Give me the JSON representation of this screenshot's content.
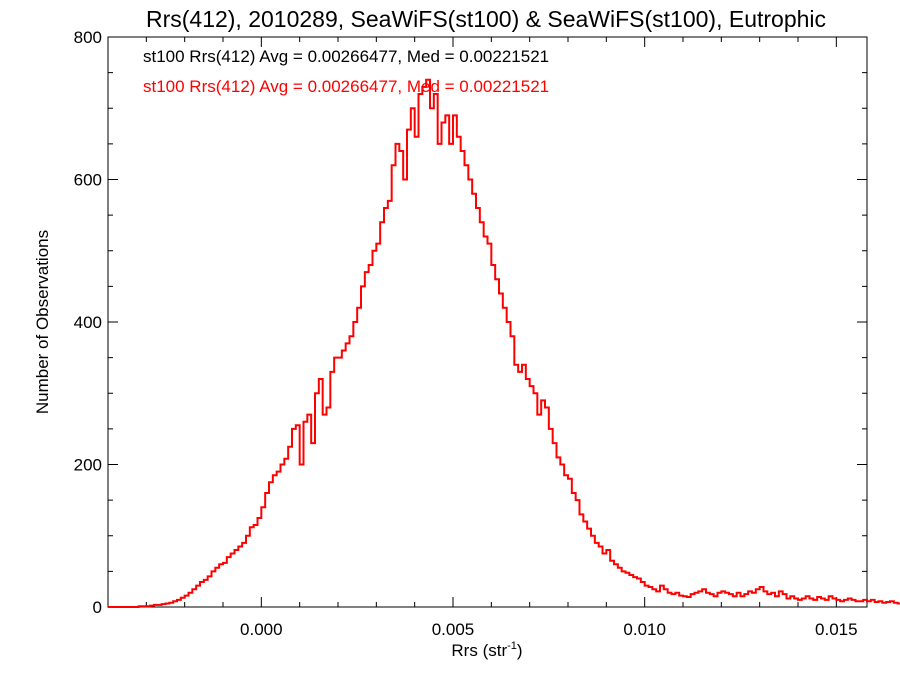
{
  "chart_data": {
    "type": "histogram",
    "title": "Rrs(412), 2010289, SeaWiFS(st100) & SeaWiFS(st100), Eutrophic",
    "xlabel": "Rrs (str",
    "xlabel_sup": "-1",
    "xlabel_close": ")",
    "ylabel": "Number of Observations",
    "xlim": [
      -0.004,
      0.0158
    ],
    "ylim": [
      0,
      800
    ],
    "xticks": [
      {
        "value": 0.0,
        "label": "0.000"
      },
      {
        "value": 0.005,
        "label": "0.005"
      },
      {
        "value": 0.01,
        "label": "0.010"
      },
      {
        "value": 0.015,
        "label": "0.015"
      }
    ],
    "yticks": [
      {
        "value": 0,
        "label": "0"
      },
      {
        "value": 200,
        "label": "200"
      },
      {
        "value": 400,
        "label": "400"
      },
      {
        "value": 600,
        "label": "600"
      },
      {
        "value": 800,
        "label": "800"
      }
    ],
    "annotations": [
      {
        "text": "st100 Rrs(412) Avg = 0.00266477, Med = 0.00221521",
        "color": "#000000"
      },
      {
        "text": "st100 Rrs(412) Avg = 0.00266477, Med = 0.00221521",
        "color": "#ff0000"
      }
    ],
    "grid": false,
    "series": [
      {
        "color": "#ff0000",
        "bin_start": -0.004,
        "bin_width": 0.0001,
        "values": [
          0,
          0,
          0,
          0,
          0,
          0,
          0,
          0,
          1,
          1,
          1,
          2,
          3,
          3,
          4,
          5,
          6,
          8,
          10,
          13,
          16,
          20,
          25,
          30,
          35,
          38,
          43,
          50,
          55,
          60,
          62,
          70,
          75,
          80,
          85,
          90,
          100,
          112,
          115,
          125,
          140,
          160,
          175,
          185,
          190,
          200,
          208,
          225,
          250,
          255,
          200,
          260,
          270,
          230,
          300,
          320,
          270,
          280,
          330,
          350,
          350,
          360,
          370,
          380,
          400,
          420,
          450,
          470,
          480,
          500,
          510,
          540,
          560,
          570,
          620,
          650,
          640,
          600,
          670,
          700,
          660,
          720,
          730,
          740,
          700,
          720,
          650,
          680,
          690,
          650,
          690,
          660,
          640,
          620,
          600,
          580,
          560,
          540,
          520,
          510,
          480,
          460,
          440,
          420,
          400,
          380,
          340,
          330,
          340,
          320,
          310,
          300,
          270,
          290,
          280,
          250,
          230,
          210,
          200,
          185,
          180,
          160,
          150,
          130,
          120,
          110,
          100,
          90,
          85,
          75,
          80,
          65,
          60,
          55,
          50,
          48,
          45,
          42,
          40,
          35,
          30,
          28,
          25,
          22,
          30,
          25,
          20,
          18,
          20,
          16,
          15,
          14,
          18,
          20,
          22,
          25,
          20,
          18,
          15,
          20,
          22,
          20,
          18,
          15,
          20,
          15,
          18,
          22,
          20,
          25,
          28,
          22,
          18,
          20,
          15,
          22,
          18,
          12,
          15,
          12,
          10,
          12,
          15,
          12,
          10,
          14,
          12,
          10,
          15,
          12,
          10,
          8,
          10,
          12,
          10,
          8,
          8,
          10,
          8,
          10,
          7,
          8,
          6,
          7,
          8,
          6,
          5,
          8,
          6,
          5,
          5,
          6,
          4,
          5,
          3,
          5,
          6,
          4,
          3,
          5,
          4,
          3,
          4,
          5,
          3,
          4,
          3,
          2,
          3,
          4,
          3,
          5,
          2,
          3,
          2,
          4,
          3,
          2,
          3,
          2
        ]
      }
    ]
  }
}
